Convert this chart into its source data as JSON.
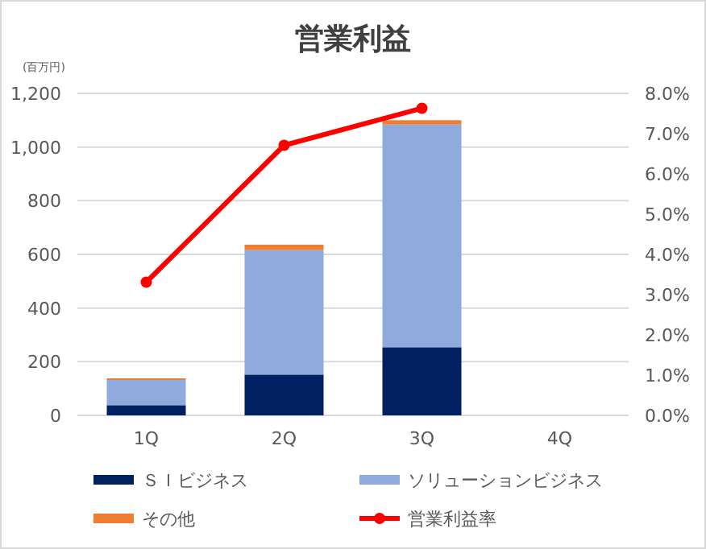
{
  "chart_data": {
    "type": "bar",
    "title": "営業利益",
    "ylabel": "(百万円)",
    "categories": [
      "1Q",
      "2Q",
      "3Q",
      "4Q"
    ],
    "stacked": true,
    "series": [
      {
        "name": "ＳＩビジネス",
        "color": "#002060",
        "values": [
          38,
          152,
          254,
          null
        ]
      },
      {
        "name": "ソリューションビジネス",
        "color": "#8faadc",
        "values": [
          94,
          464,
          830,
          null
        ]
      },
      {
        "name": "その他",
        "color": "#ed7d31",
        "values": [
          6,
          20,
          16,
          null
        ]
      },
      {
        "name": "営業利益率",
        "type": "line",
        "axis": "y2",
        "color": "#ff0000",
        "marker": "circle",
        "values": [
          3.31,
          6.71,
          7.63,
          null
        ]
      }
    ],
    "ylim": [
      0,
      1200
    ],
    "yticks": [
      {
        "value": 0,
        "label": "0"
      },
      {
        "value": 200,
        "label": "200"
      },
      {
        "value": 400,
        "label": "400"
      },
      {
        "value": 600,
        "label": "600"
      },
      {
        "value": 800,
        "label": "800"
      },
      {
        "value": 1000,
        "label": "1,000"
      },
      {
        "value": 1200,
        "label": "1,200"
      }
    ],
    "y2lim": [
      0,
      8
    ],
    "y2ticks": [
      {
        "value": 0,
        "label": "0.0%"
      },
      {
        "value": 1,
        "label": "1.0%"
      },
      {
        "value": 2,
        "label": "2.0%"
      },
      {
        "value": 3,
        "label": "3.0%"
      },
      {
        "value": 4,
        "label": "4.0%"
      },
      {
        "value": 5,
        "label": "5.0%"
      },
      {
        "value": 6,
        "label": "6.0%"
      },
      {
        "value": 7,
        "label": "7.0%"
      },
      {
        "value": 8,
        "label": "8.0%"
      }
    ],
    "grid": "y",
    "legend": "bottom"
  }
}
